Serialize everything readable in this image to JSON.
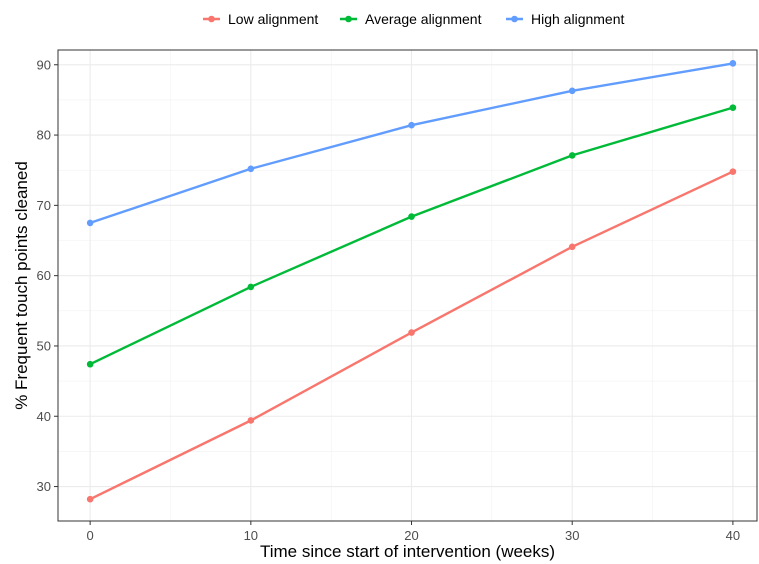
{
  "chart_data": {
    "type": "line",
    "title": "",
    "xlabel": "Time since start of intervention (weeks)",
    "ylabel": "% Frequent touch points cleaned",
    "x": [
      0,
      10,
      20,
      30,
      40
    ],
    "xlim": [
      -2,
      41.5
    ],
    "ylim": [
      25.1,
      92.1
    ],
    "x_ticks": [
      "0",
      "10",
      "20",
      "30",
      "40"
    ],
    "y_ticks": [
      "30",
      "40",
      "50",
      "60",
      "70",
      "80",
      "90"
    ],
    "grid": true,
    "legend_position": "top",
    "series": [
      {
        "name": "Low alignment",
        "color": "#F8766D",
        "values": [
          28.2,
          39.4,
          51.9,
          64.1,
          74.8
        ]
      },
      {
        "name": "Average alignment",
        "color": "#00BA38",
        "values": [
          47.4,
          58.4,
          68.4,
          77.1,
          83.9
        ]
      },
      {
        "name": "High alignment",
        "color": "#619CFF",
        "values": [
          67.5,
          75.2,
          81.4,
          86.3,
          90.2
        ]
      }
    ]
  }
}
